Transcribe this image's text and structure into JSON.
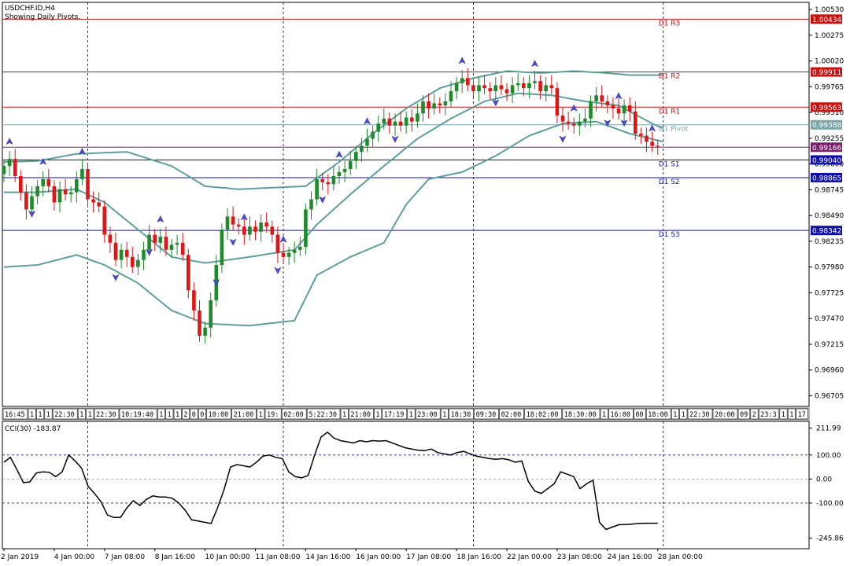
{
  "header": {
    "symbol": "USDCHF.ID,H4",
    "note": "Showing Daily Pivots."
  },
  "colors": {
    "bull": "#1f8a2a",
    "bear": "#e01515",
    "bands": "#5f9ea0",
    "resistance": "#cc1111",
    "support": "#1111aa",
    "pivot": "#7aa6a6",
    "current": "#7a1f6e"
  },
  "chart_data": [
    {
      "type": "candlestick",
      "title": "",
      "ylim": [
        0.966,
        1.006
      ],
      "y_ticks": [
        "1.00530",
        "1.00275",
        "1.00020",
        "0.99765",
        "0.99510",
        "0.99255",
        "0.99000",
        "0.98745",
        "0.98490",
        "0.98235",
        "0.97980",
        "0.97725",
        "0.97470",
        "0.97215",
        "0.96960",
        "0.96705"
      ],
      "y_tick_values": [
        1.0053,
        1.00275,
        1.0002,
        0.99765,
        0.9951,
        0.99255,
        0.99,
        0.98745,
        0.9849,
        0.98235,
        0.9798,
        0.97725,
        0.9747,
        0.97215,
        0.9696,
        0.96705
      ],
      "x_labels": [
        "2 Jan 2019",
        "4 Jan 00:00",
        "7 Jan 08:00",
        "8 Jan 16:00",
        "10 Jan 00:00",
        "11 Jan 08:00",
        "14 Jan 16:00",
        "16 Jan 00:00",
        "17 Jan 08:00",
        "18 Jan 16:00",
        "22 Jan 00:00",
        "23 Jan 08:00",
        "24 Jan 16:00",
        "28 Jan 00:00"
      ],
      "x_label_bars": [
        0,
        9,
        18,
        27,
        36,
        45,
        54,
        63,
        72,
        81,
        90,
        99,
        108,
        117
      ],
      "pivots": [
        {
          "name": "D1 R3",
          "price": "1.00434",
          "value": 1.00434
        },
        {
          "name": "D1 R2",
          "price": "0.99911",
          "value": 0.99911
        },
        {
          "name": "D1 R1",
          "price": "0.99563",
          "value": 0.99563
        },
        {
          "name": "D1 Pivot",
          "price": "0.99388",
          "value": 0.99388
        },
        {
          "name": "D1 S1",
          "price": "0.99040",
          "value": 0.9904
        },
        {
          "name": "D1 S2",
          "price": "0.98865",
          "value": 0.98865
        },
        {
          "name": "D1 S3",
          "price": "0.98342",
          "value": 0.98342
        }
      ],
      "current_price": {
        "price": "0.99166",
        "value": 0.99166
      },
      "day_separators": [
        15,
        50,
        84,
        118
      ],
      "close": [
        0.9898,
        0.9905,
        0.9888,
        0.9872,
        0.9855,
        0.9868,
        0.9878,
        0.9885,
        0.9878,
        0.9862,
        0.9875,
        0.987,
        0.9872,
        0.9885,
        0.9895,
        0.9865,
        0.9862,
        0.9858,
        0.983,
        0.9822,
        0.9805,
        0.9815,
        0.9808,
        0.9798,
        0.9805,
        0.9815,
        0.983,
        0.9822,
        0.9828,
        0.9815,
        0.982,
        0.9822,
        0.981,
        0.9775,
        0.9755,
        0.973,
        0.9738,
        0.9765,
        0.98,
        0.9835,
        0.9848,
        0.984,
        0.9838,
        0.983,
        0.9838,
        0.9833,
        0.9842,
        0.9838,
        0.983,
        0.9812,
        0.9808,
        0.9812,
        0.9815,
        0.9818,
        0.9855,
        0.9865,
        0.9885,
        0.9882,
        0.988,
        0.9888,
        0.9892,
        0.9895,
        0.9903,
        0.9912,
        0.9918,
        0.9925,
        0.9932,
        0.994,
        0.9945,
        0.9938,
        0.9942,
        0.9938,
        0.9946,
        0.9942,
        0.995,
        0.9962,
        0.9955,
        0.996,
        0.9958,
        0.9962,
        0.9972,
        0.998,
        0.9985,
        0.9978,
        0.9972,
        0.9978,
        0.9975,
        0.9972,
        0.9978,
        0.9974,
        0.997,
        0.9978,
        0.998,
        0.9975,
        0.998,
        0.9982,
        0.9972,
        0.9978,
        0.9975,
        0.9948,
        0.9942,
        0.994,
        0.9938,
        0.9942,
        0.9945,
        0.9962,
        0.9968,
        0.9962,
        0.9958,
        0.9955,
        0.995,
        0.9958,
        0.9952,
        0.993,
        0.9928,
        0.9922,
        0.9918,
        0.9917
      ],
      "bands": {
        "upper_anchors": [
          [
            0,
            0.9902
          ],
          [
            6,
            0.9903
          ],
          [
            13,
            0.991
          ],
          [
            22,
            0.9912
          ],
          [
            30,
            0.9898
          ],
          [
            36,
            0.9878
          ],
          [
            42,
            0.9875
          ],
          [
            54,
            0.9878
          ],
          [
            60,
            0.9902
          ],
          [
            66,
            0.993
          ],
          [
            72,
            0.9955
          ],
          [
            78,
            0.9975
          ],
          [
            84,
            0.9985
          ],
          [
            90,
            0.9992
          ],
          [
            96,
            0.999
          ],
          [
            102,
            0.9992
          ],
          [
            108,
            0.999
          ],
          [
            112,
            0.9988
          ],
          [
            118,
            0.9988
          ]
        ],
        "middle_anchors": [
          [
            0,
            0.9872
          ],
          [
            6,
            0.9872
          ],
          [
            13,
            0.9875
          ],
          [
            18,
            0.9862
          ],
          [
            24,
            0.9835
          ],
          [
            30,
            0.9808
          ],
          [
            36,
            0.9802
          ],
          [
            44,
            0.9808
          ],
          [
            52,
            0.9815
          ],
          [
            56,
            0.984
          ],
          [
            62,
            0.987
          ],
          [
            68,
            0.9898
          ],
          [
            74,
            0.9925
          ],
          [
            80,
            0.9945
          ],
          [
            86,
            0.9962
          ],
          [
            92,
            0.997
          ],
          [
            98,
            0.9968
          ],
          [
            104,
            0.9962
          ],
          [
            110,
            0.9958
          ],
          [
            116,
            0.994
          ],
          [
            118,
            0.9935
          ]
        ],
        "lower_anchors": [
          [
            0,
            0.9798
          ],
          [
            6,
            0.98
          ],
          [
            13,
            0.981
          ],
          [
            18,
            0.98
          ],
          [
            24,
            0.9782
          ],
          [
            30,
            0.9755
          ],
          [
            36,
            0.9742
          ],
          [
            44,
            0.974
          ],
          [
            52,
            0.9745
          ],
          [
            56,
            0.979
          ],
          [
            62,
            0.9808
          ],
          [
            68,
            0.9822
          ],
          [
            72,
            0.986
          ],
          [
            76,
            0.9885
          ],
          [
            82,
            0.9892
          ],
          [
            88,
            0.9908
          ],
          [
            94,
            0.9928
          ],
          [
            100,
            0.994
          ],
          [
            106,
            0.9942
          ],
          [
            112,
            0.993
          ],
          [
            118,
            0.9922
          ]
        ]
      },
      "fractal_up_bars": [
        1,
        7,
        14,
        28,
        43,
        50,
        60,
        65,
        82,
        95,
        102,
        110,
        116
      ],
      "fractal_down_bars": [
        5,
        20,
        26,
        38,
        41,
        49,
        57,
        70,
        88,
        100,
        108,
        111
      ],
      "timestrip_labels": [
        "16:45",
        "1",
        "1",
        "1",
        "22:30",
        "1",
        "1",
        "22:30",
        "10:19:40",
        "1",
        "1",
        "1",
        "2",
        "0",
        "0",
        "10:00",
        "21:00",
        "1",
        "19:",
        "02:00",
        "5:22:30",
        "1",
        "21:00",
        "1",
        "17:19",
        "1",
        "23:00",
        "1",
        "18:30",
        "09:30",
        "02:00",
        "18:02:00",
        "18:30:00",
        "1",
        "16:00",
        "00",
        "18:00",
        "1",
        "1",
        "22:30",
        "20:00",
        "09",
        "2",
        "23:3",
        "1",
        "1",
        "21:00",
        "17"
      ]
    },
    {
      "type": "line",
      "title": "CCI(30) -183.87",
      "name": "CCI(30)",
      "ylim": [
        -290,
        240
      ],
      "y_ticks": [
        "211.99",
        "100.00",
        "0.00",
        "-100.00",
        "-245.86"
      ],
      "y_tick_values": [
        211.99,
        100,
        0,
        -100,
        -245.86
      ],
      "levels": [
        100,
        0,
        -100
      ],
      "values": [
        70,
        90,
        40,
        -15,
        -12,
        25,
        30,
        28,
        10,
        30,
        100,
        75,
        45,
        -30,
        -60,
        -95,
        -150,
        -160,
        -160,
        -120,
        -90,
        -110,
        -85,
        -70,
        -75,
        -75,
        -80,
        -100,
        -130,
        -170,
        -175,
        -180,
        -185,
        -120,
        -45,
        50,
        60,
        55,
        50,
        70,
        95,
        100,
        90,
        85,
        30,
        10,
        5,
        15,
        100,
        175,
        195,
        170,
        160,
        155,
        150,
        160,
        155,
        160,
        158,
        160,
        150,
        140,
        130,
        125,
        120,
        118,
        125,
        110,
        105,
        100,
        110,
        115,
        105,
        95,
        90,
        85,
        82,
        85,
        80,
        70,
        75,
        -10,
        -50,
        -60,
        -40,
        -20,
        30,
        20,
        10,
        -40,
        -20,
        -5,
        -180,
        -210,
        -200,
        -190,
        -190,
        -188,
        -185,
        -184,
        -184,
        -183.87
      ]
    }
  ]
}
